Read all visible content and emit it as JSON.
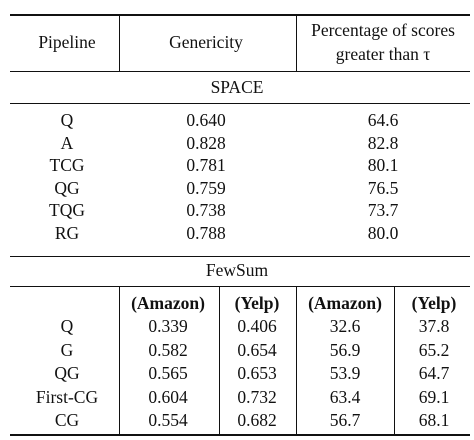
{
  "header": {
    "pipeline": "Pipeline",
    "genericity": "Genericity",
    "percentage_line1": "Percentage of scores",
    "percentage_line2": "greater than τ"
  },
  "space": {
    "title": "SPACE",
    "rows": [
      {
        "pipeline": "Q",
        "genericity": "0.640",
        "percentage": "64.6"
      },
      {
        "pipeline": "A",
        "genericity": "0.828",
        "percentage": "82.8"
      },
      {
        "pipeline": "TCG",
        "genericity": "0.781",
        "percentage": "80.1"
      },
      {
        "pipeline": "QG",
        "genericity": "0.759",
        "percentage": "76.5"
      },
      {
        "pipeline": "TQG",
        "genericity": "0.738",
        "percentage": "73.7"
      },
      {
        "pipeline": "RG",
        "genericity": "0.788",
        "percentage": "80.0"
      }
    ]
  },
  "fewsum": {
    "title": "FewSum",
    "subheaders": [
      "(Amazon)",
      "(Yelp)",
      "(Amazon)",
      "(Yelp)"
    ],
    "rows": [
      {
        "pipeline": "Q",
        "gen_amazon": "0.339",
        "gen_yelp": "0.406",
        "pct_amazon": "32.6",
        "pct_yelp": "37.8"
      },
      {
        "pipeline": "G",
        "gen_amazon": "0.582",
        "gen_yelp": "0.654",
        "pct_amazon": "56.9",
        "pct_yelp": "65.2"
      },
      {
        "pipeline": "QG",
        "gen_amazon": "0.565",
        "gen_yelp": "0.653",
        "pct_amazon": "53.9",
        "pct_yelp": "64.7"
      },
      {
        "pipeline": "First-CG",
        "gen_amazon": "0.604",
        "gen_yelp": "0.732",
        "pct_amazon": "63.4",
        "pct_yelp": "69.1"
      },
      {
        "pipeline": "CG",
        "gen_amazon": "0.554",
        "gen_yelp": "0.682",
        "pct_amazon": "56.7",
        "pct_yelp": "68.1"
      }
    ]
  }
}
